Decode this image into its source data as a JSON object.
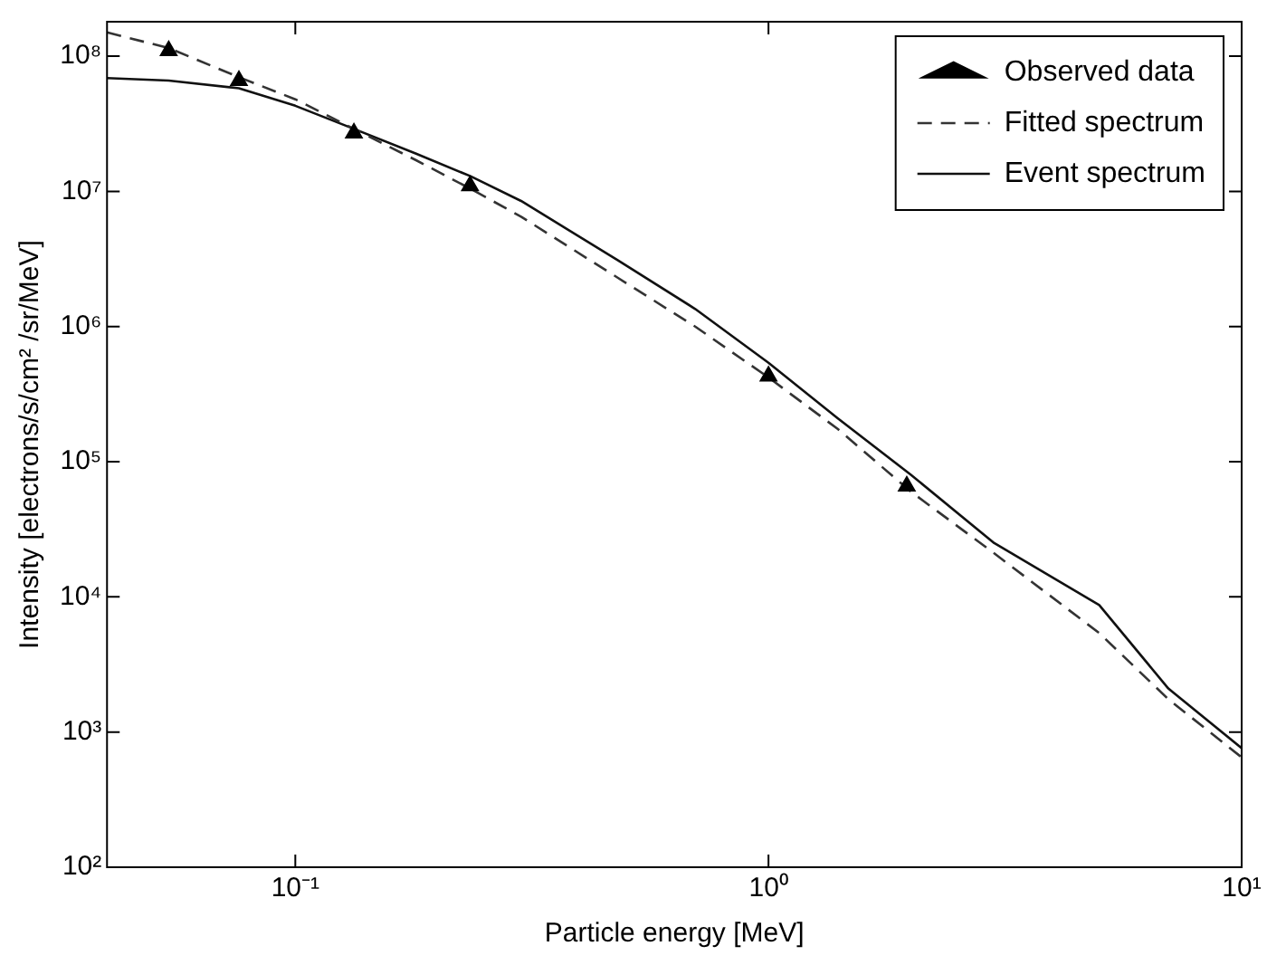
{
  "chart_data": {
    "type": "line",
    "xlabel": "Particle energy [MeV]",
    "ylabel": "Intensity [electrons/s/cm² /sr/MeV]",
    "log": "xy",
    "grid": false,
    "legend": "top right",
    "xlim": [
      0.04,
      10
    ],
    "ylim": [
      100,
      180000000
    ],
    "xticks": [
      {
        "value": 0.1,
        "label": "10⁻¹"
      },
      {
        "value": 1,
        "label": "10⁰"
      },
      {
        "value": 10,
        "label": "10¹"
      }
    ],
    "yticks": [
      {
        "value": 100,
        "label": "10²"
      },
      {
        "value": 1000,
        "label": "10³"
      },
      {
        "value": 10000,
        "label": "10⁴"
      },
      {
        "value": 100000,
        "label": "10⁵"
      },
      {
        "value": 1000000,
        "label": "10⁶"
      },
      {
        "value": 10000000,
        "label": "10⁷"
      },
      {
        "value": 100000000,
        "label": "10⁸"
      }
    ],
    "series": [
      {
        "name": "Observed data",
        "type": "scatter",
        "marker": "triangle",
        "color": "#000000",
        "x": [
          0.054,
          0.076,
          0.133,
          0.234,
          1.0,
          1.96
        ],
        "values": [
          110000000,
          66000000,
          27000000,
          11000000,
          430000,
          66000
        ]
      },
      {
        "name": "Fitted spectrum",
        "type": "line",
        "line_style": "dashed",
        "marker": "none",
        "color": "#333333",
        "x": [
          0.04,
          0.054,
          0.076,
          0.1,
          0.133,
          0.18,
          0.234,
          0.3,
          0.48,
          0.7,
          1.0,
          1.4,
          2.0,
          3.0,
          5.0,
          7.0,
          10
        ],
        "values": [
          150000000,
          115000000,
          70000000,
          48000000,
          29000000,
          17000000,
          10500000,
          6500000,
          2300000,
          1000000,
          420000,
          175000,
          60000,
          21000,
          5400,
          1750,
          650
        ]
      },
      {
        "name": "Event spectrum",
        "type": "line",
        "line_style": "solid",
        "marker": "none",
        "color": "#111111",
        "x": [
          0.04,
          0.054,
          0.076,
          0.1,
          0.133,
          0.18,
          0.234,
          0.3,
          0.48,
          0.7,
          1.0,
          1.4,
          2.0,
          3.0,
          5.0,
          7.0,
          10
        ],
        "values": [
          69000000,
          66000000,
          58000000,
          43000000,
          29000000,
          19000000,
          13000000,
          8500000,
          3100000,
          1350000,
          540000,
          210000,
          80000,
          25000,
          8700,
          2100,
          760
        ]
      }
    ]
  }
}
